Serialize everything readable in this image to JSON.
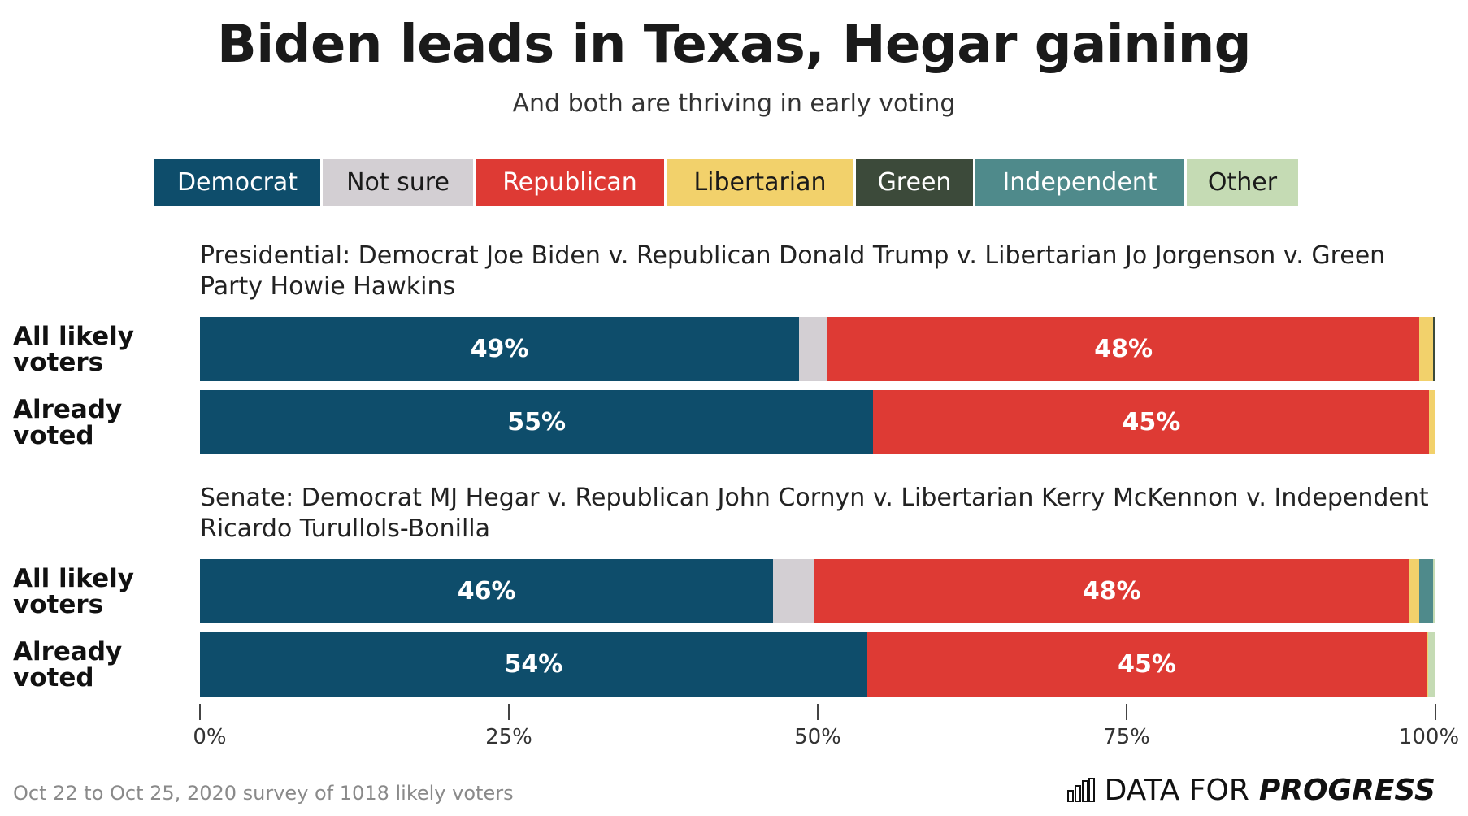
{
  "title": "Biden leads in Texas, Hegar gaining",
  "subtitle": "And both are thriving in early voting",
  "legend": [
    {
      "label": "Democrat",
      "color": "#0e4d6b",
      "text_color": "#ffffff"
    },
    {
      "label": "Not sure",
      "color": "#d3cfd3",
      "text_color": "#1a1a1a"
    },
    {
      "label": "Republican",
      "color": "#de3a34",
      "text_color": "#ffffff"
    },
    {
      "label": "Libertarian",
      "color": "#f2d16b",
      "text_color": "#1a1a1a"
    },
    {
      "label": "Green",
      "color": "#3c4a3a",
      "text_color": "#ffffff"
    },
    {
      "label": "Independent",
      "color": "#4f8a8b",
      "text_color": "#ffffff"
    },
    {
      "label": "Other",
      "color": "#c5dbb4",
      "text_color": "#1a1a1a"
    }
  ],
  "footer": "Oct 22 to Oct 25, 2020 survey of 1018 likely voters",
  "brand": {
    "prefix": "DATA FOR",
    "suffix": "PROGRESS"
  },
  "chart_data": {
    "type": "bar",
    "orientation": "horizontal-stacked",
    "x_ticks": [
      "0%",
      "25%",
      "50%",
      "75%",
      "100%"
    ],
    "xlim": [
      0,
      100
    ],
    "series_colors": {
      "Democrat": "#0e4d6b",
      "Not sure": "#d3cfd3",
      "Republican": "#de3a34",
      "Libertarian": "#f2d16b",
      "Green": "#3c4a3a",
      "Independent": "#4f8a8b",
      "Other": "#c5dbb4"
    },
    "sections": [
      {
        "title": "Presidential: Democrat Joe Biden v. Republican Donald Trump v. Libertarian Jo Jorgenson v. Green Party Howie Hawkins",
        "rows": [
          {
            "label": "All likely voters",
            "segments": [
              {
                "series": "Democrat",
                "value": 48.5,
                "label": "49%"
              },
              {
                "series": "Not sure",
                "value": 2.3,
                "label": ""
              },
              {
                "series": "Republican",
                "value": 47.9,
                "label": "48%"
              },
              {
                "series": "Libertarian",
                "value": 1.1,
                "label": ""
              },
              {
                "series": "Green",
                "value": 0.2,
                "label": ""
              }
            ]
          },
          {
            "label": "Already voted",
            "segments": [
              {
                "series": "Democrat",
                "value": 54.5,
                "label": "55%"
              },
              {
                "series": "Republican",
                "value": 45.0,
                "label": "45%"
              },
              {
                "series": "Libertarian",
                "value": 0.5,
                "label": ""
              }
            ]
          }
        ]
      },
      {
        "title": "Senate: Democrat MJ Hegar v. Republican John Cornyn v. Libertarian Kerry McKennon v. Independent Ricardo Turullols-Bonilla",
        "rows": [
          {
            "label": "All likely voters",
            "segments": [
              {
                "series": "Democrat",
                "value": 46.4,
                "label": "46%"
              },
              {
                "series": "Not sure",
                "value": 3.3,
                "label": ""
              },
              {
                "series": "Republican",
                "value": 48.2,
                "label": "48%"
              },
              {
                "series": "Libertarian",
                "value": 0.8,
                "label": ""
              },
              {
                "series": "Independent",
                "value": 1.1,
                "label": ""
              },
              {
                "series": "Other",
                "value": 0.2,
                "label": ""
              }
            ]
          },
          {
            "label": "Already voted",
            "segments": [
              {
                "series": "Democrat",
                "value": 54.0,
                "label": "54%"
              },
              {
                "series": "Republican",
                "value": 45.3,
                "label": "45%"
              },
              {
                "series": "Libertarian",
                "value": 0.1,
                "label": ""
              },
              {
                "series": "Other",
                "value": 0.6,
                "label": ""
              }
            ]
          }
        ]
      }
    ]
  }
}
